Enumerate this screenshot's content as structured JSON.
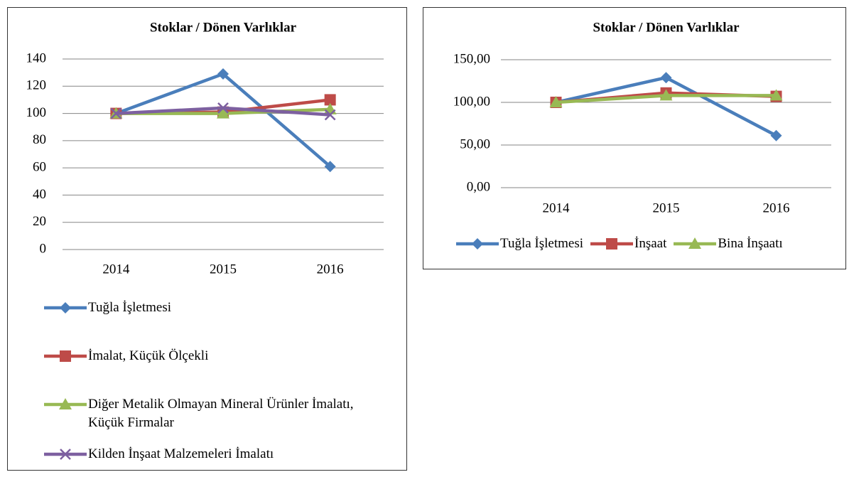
{
  "chart_data": [
    {
      "type": "line",
      "title": "Stoklar / Dönen Varlıklar",
      "categories": [
        "2014",
        "2015",
        "2016"
      ],
      "series": [
        {
          "name": "Tuğla İşletmesi",
          "color": "#4a7ebb",
          "marker": "diamond",
          "values": [
            100,
            129,
            61
          ]
        },
        {
          "name": "İmalat, Küçük Ölçekli",
          "color": "#be4b48",
          "marker": "square",
          "values": [
            100,
            101,
            110
          ]
        },
        {
          "name": "Diğer Metalik Olmayan Mineral Ürünler İmalatı, Küçük Firmalar",
          "color": "#98b954",
          "marker": "triangle",
          "values": [
            100,
            100,
            103
          ]
        },
        {
          "name": "Kilden İnşaat Malzemeleri İmalatı",
          "color": "#7d60a0",
          "marker": "x",
          "values": [
            100,
            104,
            99
          ]
        }
      ],
      "ylim": [
        0,
        140
      ],
      "yticks": [
        0,
        20,
        40,
        60,
        80,
        100,
        120,
        140
      ],
      "grid": true,
      "legend": "bottom"
    },
    {
      "type": "line",
      "title": "Stoklar / Dönen Varlıklar",
      "categories": [
        "2014",
        "2015",
        "2016"
      ],
      "series": [
        {
          "name": "Tuğla İşletmesi",
          "color": "#4a7ebb",
          "marker": "diamond",
          "values": [
            100,
            129,
            61
          ]
        },
        {
          "name": "İnşaat",
          "color": "#be4b48",
          "marker": "square",
          "values": [
            100,
            111,
            107
          ]
        },
        {
          "name": "Bina İnşaatı",
          "color": "#98b954",
          "marker": "triangle",
          "values": [
            100,
            108,
            108
          ]
        }
      ],
      "ylim": [
        0,
        150
      ],
      "yticks": [
        {
          "value": 0,
          "label": "0,00"
        },
        {
          "value": 50,
          "label": "50,00"
        },
        {
          "value": 100,
          "label": "100,00"
        },
        {
          "value": 150,
          "label": "150,00"
        }
      ],
      "grid": true,
      "legend": "bottom"
    }
  ]
}
